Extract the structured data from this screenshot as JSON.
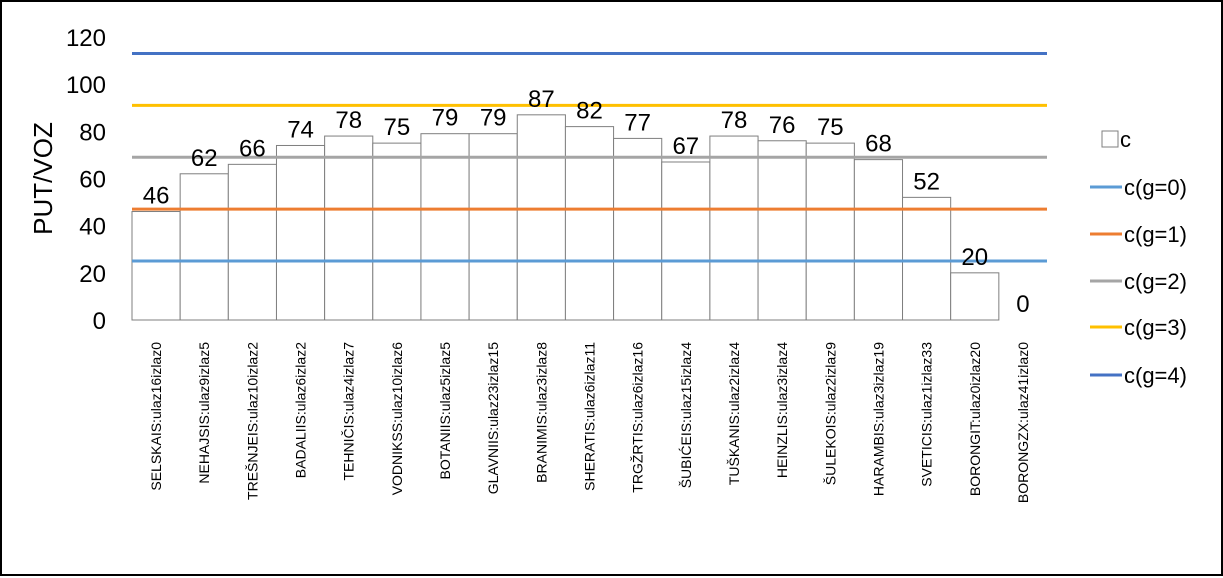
{
  "chart_data": {
    "type": "bar",
    "title": "",
    "xlabel": "",
    "ylabel": "PUT/VOZ",
    "ylim": [
      0,
      120
    ],
    "yticks": [
      "0",
      "20",
      "40",
      "60",
      "80",
      "100",
      "120"
    ],
    "grid": false,
    "legend_position": "right",
    "categories": [
      "SELSKAIS:ulaz16izlaz0",
      "NEHAJSIS:ulaz9izlaz5",
      "TREŠNJEIS:ulaz10izlaz2",
      "BADALIIS:ulaz6izlaz2",
      "TEHNIČIS:ulaz4izlaz7",
      "VODNIKSS:ulaz10izlaz6",
      "BOTANIIS:ulaz5izlaz5",
      "GLAVNIIS:ulaz23izlaz15",
      "BRANIMIS:ulaz3izlaz8",
      "SHERATIS:ulaz6izlaz11",
      "TRGŽRTIS:ulaz6izlaz16",
      "ŠUBIĆEIS:ulaz15izlaz4",
      "TUŠKANIS:ulaz2izlaz4",
      "HEINZLIS:ulaz3izlaz4",
      "ŠULEKOIS:ulaz2izlaz9",
      "HARAMBIS:ulaz3izlaz19",
      "SVETICIS:ulaz1izlaz33",
      "BORONGIT:ulaz0izlaz20",
      "BORONGZX:ulaz41izlaz0"
    ],
    "series": [
      {
        "name": "c",
        "values": [
          46,
          62,
          66,
          74,
          78,
          75,
          79,
          79,
          87,
          82,
          77,
          67,
          78,
          76,
          75,
          68,
          52,
          20,
          0
        ],
        "data_labels": [
          "46",
          "62",
          "66",
          "74",
          "78",
          "75",
          "79",
          "79",
          "87",
          "82",
          "77",
          "67",
          "78",
          "76",
          "75",
          "68",
          "52",
          "20",
          "0"
        ],
        "fill": "#ffffff",
        "stroke": "#7f7f7f"
      }
    ],
    "reference_lines": [
      {
        "name": "c(g=0)",
        "value": 25,
        "color": "#5b9bd5"
      },
      {
        "name": "c(g=1)",
        "value": 47,
        "color": "#ed7d31"
      },
      {
        "name": "c(g=2)",
        "value": 69,
        "color": "#a5a5a5"
      },
      {
        "name": "c(g=3)",
        "value": 91,
        "color": "#ffc000"
      },
      {
        "name": "c(g=4)",
        "value": 113,
        "color": "#4472c4"
      }
    ]
  }
}
